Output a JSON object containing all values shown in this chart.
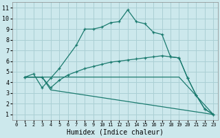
{
  "xlabel": "Humidex (Indice chaleur)",
  "background_color": "#cce8ec",
  "grid_color": "#aacfd4",
  "line_color": "#1a7a6e",
  "xlim": [
    -0.5,
    23.5
  ],
  "ylim": [
    0.5,
    11.5
  ],
  "xticks": [
    0,
    1,
    2,
    3,
    4,
    5,
    6,
    7,
    8,
    9,
    10,
    11,
    12,
    13,
    14,
    15,
    16,
    17,
    18,
    19,
    20,
    21,
    22,
    23
  ],
  "yticks": [
    1,
    2,
    3,
    4,
    5,
    6,
    7,
    8,
    9,
    10,
    11
  ],
  "series": [
    {
      "x": [
        1,
        2,
        3,
        4,
        5,
        7,
        8,
        9,
        10,
        11,
        12,
        13,
        14,
        15,
        16,
        17,
        18,
        19,
        20,
        21,
        22,
        23
      ],
      "y": [
        4.5,
        4.8,
        3.5,
        4.4,
        5.3,
        7.5,
        9.0,
        9.0,
        9.2,
        9.6,
        9.7,
        10.8,
        9.7,
        9.5,
        8.7,
        8.5,
        6.4,
        6.3,
        4.4,
        2.8,
        1.5,
        1.0
      ],
      "marker": true
    },
    {
      "x": [
        1,
        3,
        4,
        5,
        6,
        7,
        8,
        9,
        10,
        11,
        12,
        13,
        14,
        15,
        16,
        17,
        18,
        19,
        20,
        21,
        22,
        23
      ],
      "y": [
        4.5,
        4.5,
        3.5,
        4.2,
        4.7,
        5.0,
        5.3,
        5.5,
        5.7,
        5.9,
        6.0,
        6.1,
        6.2,
        6.3,
        6.4,
        6.5,
        6.4,
        6.3,
        4.4,
        2.8,
        1.5,
        1.0
      ],
      "marker": true
    },
    {
      "x": [
        1,
        3,
        19,
        23
      ],
      "y": [
        4.5,
        4.5,
        4.5,
        1.0
      ],
      "marker": false
    },
    {
      "x": [
        1,
        3,
        4,
        23
      ],
      "y": [
        4.5,
        4.5,
        3.3,
        1.0
      ],
      "marker": false
    }
  ]
}
